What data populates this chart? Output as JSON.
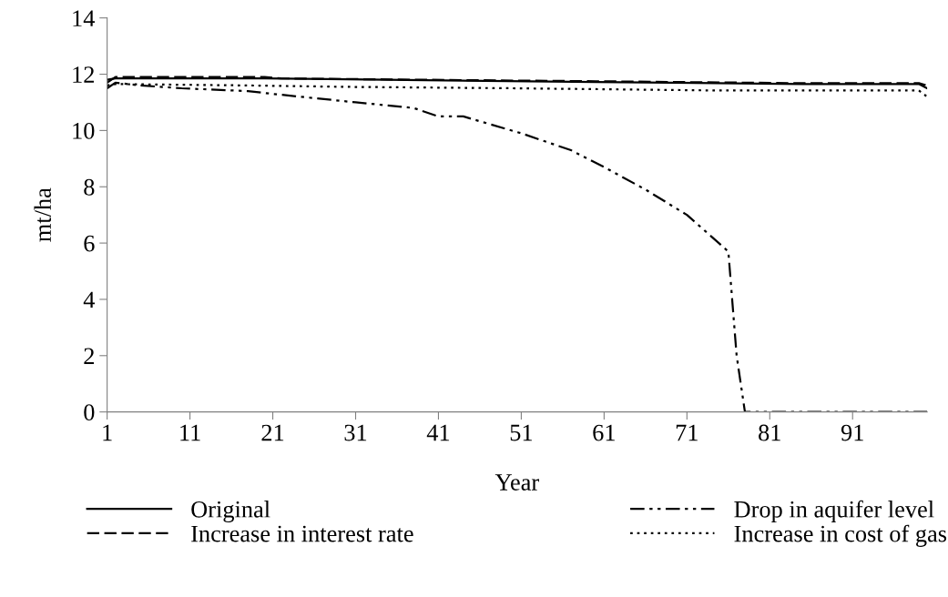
{
  "chart_data": {
    "type": "line",
    "xlabel": "Year",
    "ylabel": "mt/ha",
    "xlim": [
      1,
      100
    ],
    "xticks": [
      1,
      11,
      21,
      31,
      41,
      51,
      61,
      71,
      81,
      91
    ],
    "ylim": [
      0,
      14
    ],
    "yticks": [
      0,
      2,
      4,
      6,
      8,
      10,
      12,
      14
    ],
    "grid": false,
    "legend": "bottom",
    "marker": "none",
    "series": [
      {
        "name": "Original",
        "color": "#000000",
        "line_style": "solid",
        "x": [
          1,
          2,
          20,
          30,
          60,
          85,
          99,
          100
        ],
        "values": [
          11.8,
          11.85,
          11.85,
          11.82,
          11.72,
          11.65,
          11.65,
          11.5
        ]
      },
      {
        "name": "Increase in interest rate",
        "color": "#000000",
        "line_style": "dashed",
        "x": [
          1,
          2,
          20,
          22,
          40,
          60,
          85,
          99,
          100
        ],
        "values": [
          11.7,
          11.9,
          11.9,
          11.85,
          11.8,
          11.75,
          11.68,
          11.68,
          11.6
        ]
      },
      {
        "name": "Drop in aquifer level",
        "color": "#000000",
        "line_style": "dashdotdot",
        "x": [
          1,
          2,
          5,
          10,
          18,
          21,
          31,
          38,
          41,
          44,
          51,
          57,
          61,
          66,
          71,
          76,
          77,
          78,
          100
        ],
        "values": [
          11.5,
          11.7,
          11.6,
          11.5,
          11.4,
          11.3,
          11.0,
          10.8,
          10.5,
          10.5,
          9.9,
          9.3,
          8.7,
          7.9,
          7.0,
          5.7,
          2.0,
          0,
          0
        ]
      },
      {
        "name": "Increase in cost of gas",
        "color": "#000000",
        "line_style": "dotted",
        "x": [
          1,
          2,
          18,
          30,
          50,
          75,
          99,
          100
        ],
        "values": [
          11.6,
          11.65,
          11.6,
          11.55,
          11.5,
          11.42,
          11.42,
          11.2
        ]
      }
    ]
  }
}
